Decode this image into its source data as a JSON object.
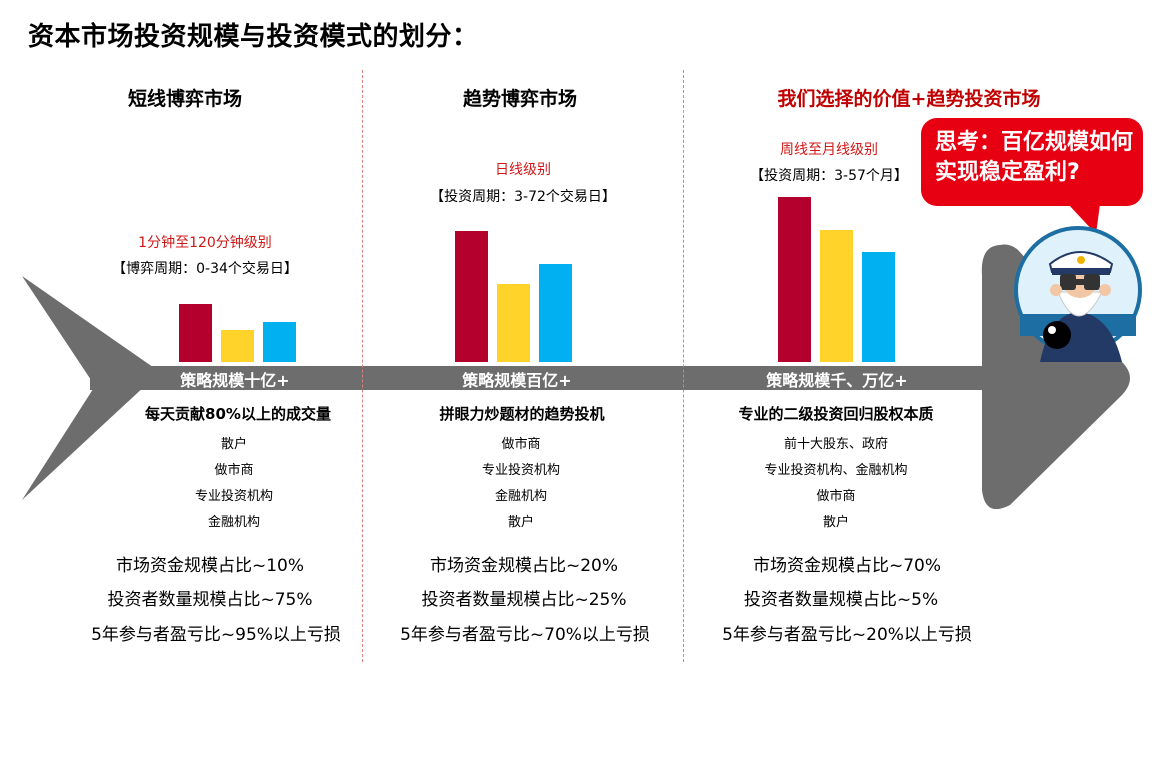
{
  "title": "资本市场投资规模与投资模式的划分：",
  "colors": {
    "red_bar": "#b3002d",
    "yellow_bar": "#ffd32a",
    "blue_bar": "#00b0f0",
    "spine": "#6d6d6d",
    "highlight": "#c00000",
    "bubble": "#e60012"
  },
  "columns": [
    {
      "heading": "短线博弈市场",
      "level": "1分钟至120分钟级别",
      "period": "【博弈周期：0-34个交易日】",
      "scale": "策略规模十亿+",
      "description": "每天贡献80%以上的成交量",
      "participants": [
        "散户",
        "做市商",
        "专业投资机构",
        "金融机构"
      ],
      "stats": [
        "市场资金规模占比~10%",
        "投资者数量规模占比~75%",
        "5年参与者盈亏比~95%以上亏损"
      ]
    },
    {
      "heading": "趋势博弈市场",
      "level": "日线级别",
      "period": "【投资周期：3-72个交易日】",
      "scale": "策略规模百亿+",
      "description": "拼眼力炒题材的趋势投机",
      "participants": [
        "做市商",
        "专业投资机构",
        "金融机构",
        "散户"
      ],
      "stats": [
        "市场资金规模占比~20%",
        "投资者数量规模占比~25%",
        "5年参与者盈亏比~70%以上亏损"
      ]
    },
    {
      "heading": "我们选择的价值+趋势投资市场",
      "level": "周线至月线级别",
      "period": "【投资周期：3-57个月】",
      "scale": "策略规模千、万亿+",
      "description": "专业的二级投资回归股权本质",
      "participants": [
        "前十大股东、政府",
        "专业投资机构、金融机构",
        "做市商",
        "散户"
      ],
      "stats": [
        "市场资金规模占比~70%",
        "投资者数量规模占比~5%",
        "5年参与者盈亏比~20%以上亏损"
      ]
    }
  ],
  "chart_data": [
    {
      "type": "bar",
      "values": [
        58,
        32,
        40
      ]
    },
    {
      "type": "bar",
      "values": [
        131,
        78,
        98
      ]
    },
    {
      "type": "bar",
      "values": [
        165,
        132,
        110
      ]
    }
  ],
  "bubble_text": "思考：百亿规模如何实现稳定盈利?",
  "icon": "captain-with-binoculars-icon"
}
